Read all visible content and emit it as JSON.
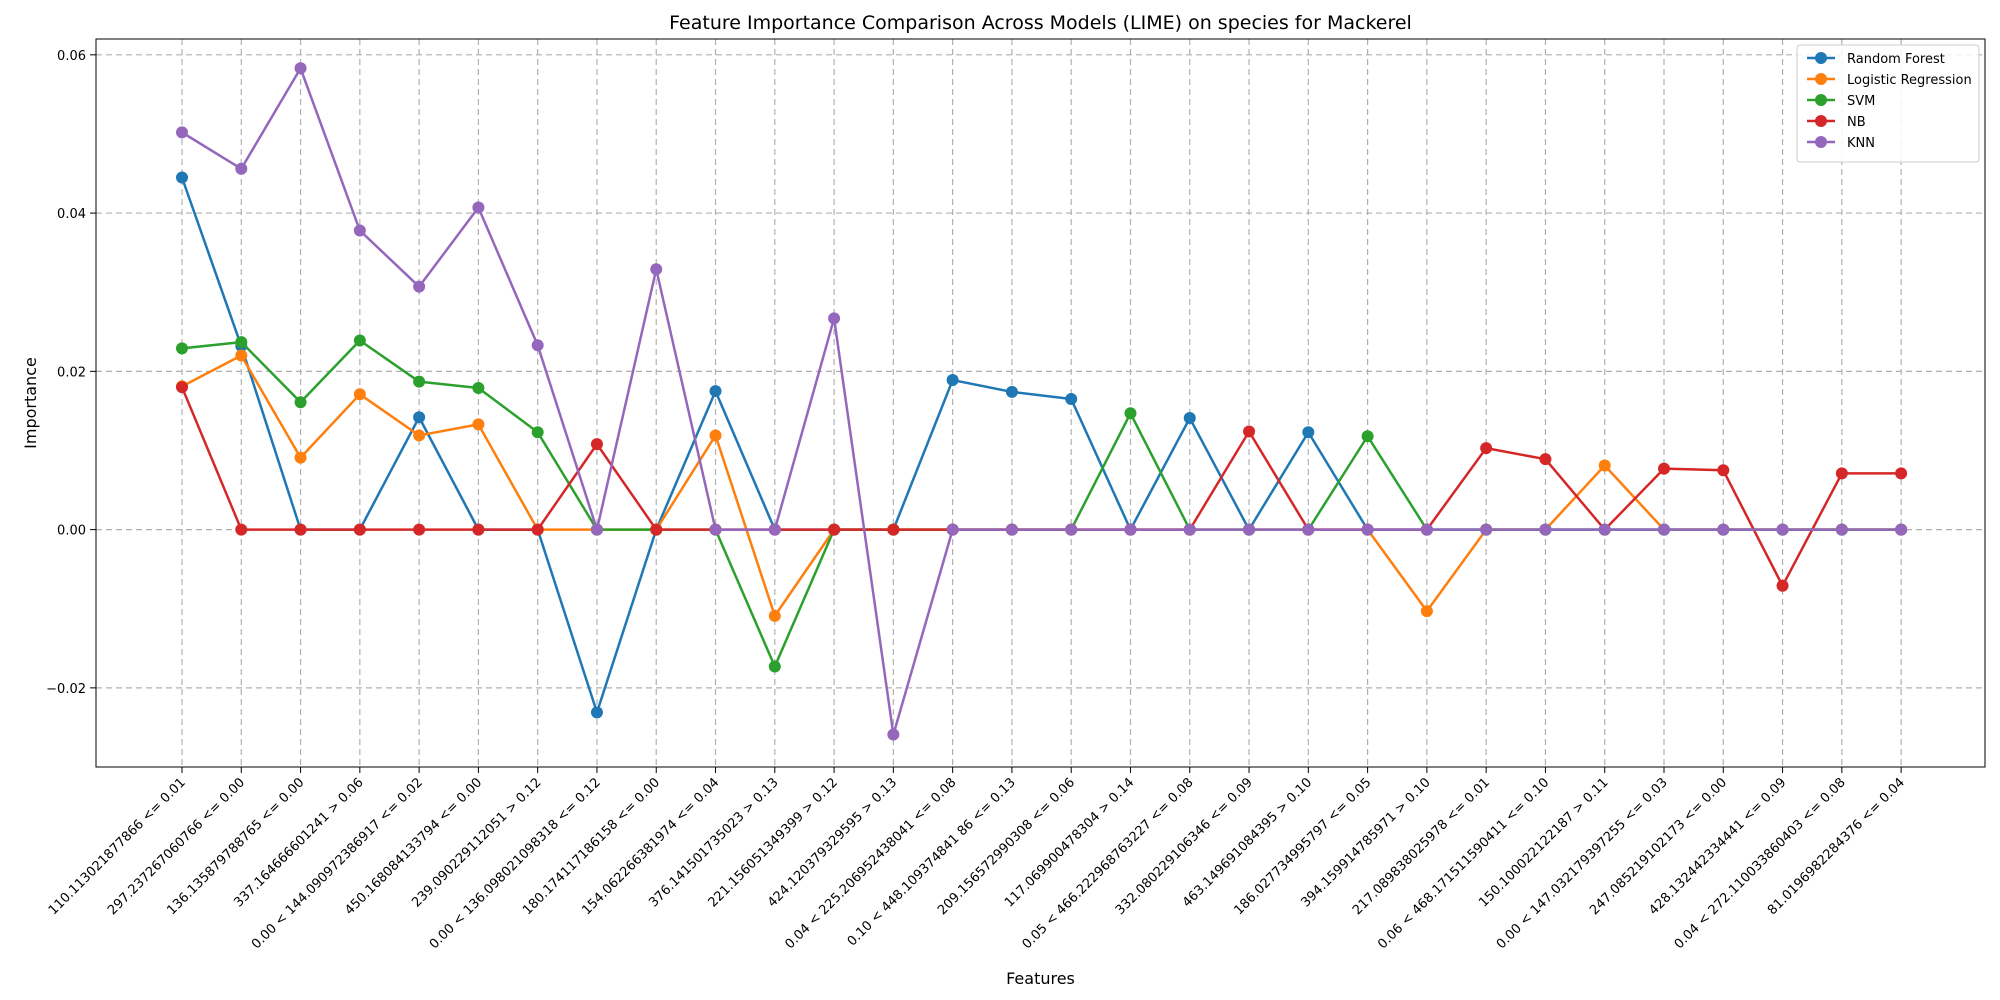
{
  "chart_data": {
    "type": "line",
    "title": "Feature Importance Comparison Across Models (LIME) on species for Mackerel",
    "xlabel": "Features",
    "ylabel": "Importance",
    "ylim": [
      -0.03,
      0.062
    ],
    "yticks": [
      -0.02,
      0.0,
      0.02,
      0.04,
      0.06
    ],
    "ytick_labels": [
      "−0.02",
      "0.00",
      "0.02",
      "0.04",
      "0.06"
    ],
    "grid": true,
    "legend_position": "top-right",
    "categories": [
      "110.113021877866 <= 0.01",
      "297.237267060766 <= 0.00",
      "136.135879788765 <= 0.00",
      "337.164666601241 > 0.06",
      "0.00 < 144.090972386917 <= 0.02",
      "450.168084133794 <= 0.00",
      "239.090229112051 > 0.12",
      "0.00 < 136.098021098318 <= 0.12",
      "180.174117186158 <= 0.00",
      "154.062266381974 <= 0.04",
      "376.141501735023 > 0.13",
      "221.156051349399 > 0.12",
      "424.120379329595 > 0.13",
      "0.04 < 225.206952438041 <= 0.08",
      "0.10 < 448.109374841 86 <= 0.13",
      "209.156572990308 <= 0.06",
      "117.069900478304 > 0.14",
      "0.05 < 466.222968763227 <= 0.08",
      "332.080229106346 <= 0.09",
      "463.149691084395 > 0.10",
      "186.027734995797 <= 0.05",
      "394.159914785971 > 0.10",
      "217.089838025978 <= 0.01",
      "0.06 < 468.171511590411 <= 0.10",
      "150.100022122187 > 0.11",
      "0.00 < 147.032179397255 <= 0.03",
      "247.085219102173 <= 0.00",
      "428.132442334441 <= 0.09",
      "0.04 < 272.110033860403 <= 0.08",
      "81.0196982284376 <= 0.04"
    ],
    "series": [
      {
        "name": "Random Forest",
        "color": "#1f77b4",
        "values": [
          0.0445,
          0.0232,
          0.0,
          0.0,
          0.0142,
          0.0,
          0.0,
          -0.0231,
          0.0,
          0.0175,
          0.0,
          0.0,
          0.0,
          0.0189,
          0.0174,
          0.0165,
          0.0,
          0.0141,
          0.0,
          0.0123,
          0.0,
          0.0,
          0.0,
          0.0,
          0.0,
          0.0,
          0.0,
          0.0,
          0.0,
          0.0
        ]
      },
      {
        "name": "Logistic Regression",
        "color": "#ff7f0e",
        "values": [
          0.0181,
          0.022,
          0.0091,
          0.0171,
          0.0119,
          0.0133,
          0.0,
          0.0,
          0.0,
          0.0119,
          -0.0109,
          0.0,
          0.0,
          0.0,
          0.0,
          0.0,
          0.0,
          0.0,
          0.0,
          0.0,
          0.0,
          -0.0103,
          0.0,
          0.0,
          0.0081,
          0.0,
          0.0,
          0.0,
          0.0,
          0.0
        ]
      },
      {
        "name": "SVM",
        "color": "#2ca02c",
        "values": [
          0.0229,
          0.0237,
          0.0161,
          0.0239,
          0.0187,
          0.0179,
          0.0123,
          0.0,
          0.0,
          0.0,
          -0.0173,
          0.0,
          0.0,
          0.0,
          0.0,
          0.0,
          0.0147,
          0.0,
          0.0,
          0.0,
          0.0118,
          0.0,
          0.0,
          0.0,
          0.0,
          0.0,
          0.0,
          0.0,
          0.0,
          0.0
        ]
      },
      {
        "name": "NB",
        "color": "#d62728",
        "values": [
          0.018,
          0.0,
          0.0,
          0.0,
          0.0,
          0.0,
          0.0,
          0.0108,
          0.0,
          0.0,
          0.0,
          0.0,
          0.0,
          0.0,
          0.0,
          0.0,
          0.0,
          0.0,
          0.0124,
          0.0,
          0.0,
          0.0,
          0.0103,
          0.0089,
          0.0,
          0.0077,
          0.0075,
          -0.0071,
          0.0071,
          0.0071
        ]
      },
      {
        "name": "KNN",
        "color": "#9467bd",
        "values": [
          0.0502,
          0.0456,
          0.0583,
          0.0378,
          0.0307,
          0.0407,
          0.0233,
          0.0,
          0.0329,
          0.0,
          0.0,
          0.0267,
          -0.0259,
          0.0,
          0.0,
          0.0,
          0.0,
          0.0,
          0.0,
          0.0,
          0.0,
          0.0,
          0.0,
          0.0,
          0.0,
          0.0,
          0.0,
          0.0,
          0.0,
          0.0
        ]
      }
    ]
  }
}
